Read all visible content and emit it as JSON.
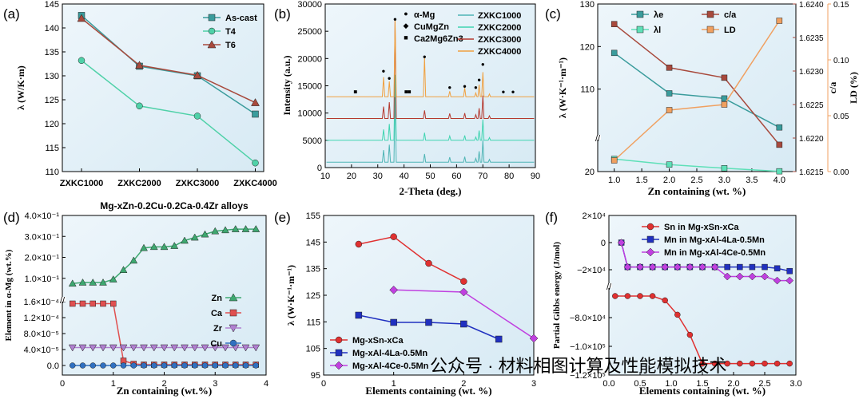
{
  "watermark": "公众号 · 材料相图计算及性能模拟技术",
  "chart_data": [
    {
      "id": "a",
      "panel_label": "(a)",
      "type": "line",
      "ylabel": "λ (W/K·m)",
      "xlabel": "",
      "categories": [
        "ZXKC1000",
        "ZXKC2000",
        "ZXKC3000",
        "ZXKC4000"
      ],
      "ylim": [
        110,
        145
      ],
      "yticks": [
        "110",
        "115",
        "120",
        "125",
        "130",
        "135",
        "140",
        "145"
      ],
      "legend_position": "top-right",
      "series": [
        {
          "name": "As-cast",
          "color": "#3a9c9c",
          "marker": "square",
          "values": [
            142.6,
            132.0,
            130.0,
            122.0
          ]
        },
        {
          "name": "T4",
          "color": "#4fd1a8",
          "marker": "circle",
          "values": [
            133.2,
            123.7,
            121.6,
            111.8
          ]
        },
        {
          "name": "T6",
          "color": "#a8493c",
          "marker": "triangle",
          "values": [
            142.0,
            132.2,
            130.1,
            124.4
          ]
        }
      ]
    },
    {
      "id": "b",
      "panel_label": "(b)",
      "type": "line",
      "xlabel": "2-Theta (deg.)",
      "ylabel": "Intensity (a.u.)",
      "xlim": [
        10,
        90
      ],
      "xticks": [
        "10",
        "20",
        "30",
        "40",
        "50",
        "60",
        "70",
        "80",
        "90"
      ],
      "ylim": [
        0,
        30000
      ],
      "yticks": [
        "0",
        "5000",
        "10000",
        "15000",
        "20000",
        "25000",
        "30000"
      ],
      "phase_legend": [
        {
          "symbol": "●",
          "label": "α-Mg"
        },
        {
          "symbol": "◆",
          "label": "CuMgZn"
        },
        {
          "symbol": "■",
          "label": "Ca2Mg6Zn3"
        }
      ],
      "peaks": [
        32.2,
        34.4,
        36.6,
        47.8,
        57.4,
        63.1,
        67.3,
        68.6,
        70.0,
        72.5
      ],
      "series": [
        {
          "name": "ZXKC1000",
          "color": "#4fb5b5",
          "offset": 1000,
          "heights": [
            2200,
            3200,
            13000,
            1500,
            900,
            1000,
            700,
            2000,
            4000,
            500
          ]
        },
        {
          "name": "ZXKC2000",
          "color": "#3fd4b0",
          "offset": 5000,
          "heights": [
            2000,
            3000,
            12000,
            1400,
            800,
            900,
            600,
            1800,
            3800,
            500
          ]
        },
        {
          "name": "ZXKC3000",
          "color": "#b5392e",
          "offset": 9000,
          "heights": [
            2200,
            3000,
            18000,
            1500,
            900,
            1000,
            700,
            1900,
            4200,
            500
          ]
        },
        {
          "name": "ZXKC4000",
          "color": "#f0a040",
          "offset": 13000,
          "heights": [
            3600,
            2800,
            14300,
            7300,
            1000,
            1600,
            700,
            2200,
            4500,
            500
          ]
        }
      ],
      "markers": [
        {
          "x": 21.5,
          "y": 14000,
          "symbol": "■"
        },
        {
          "x": 32.2,
          "y": 17800,
          "symbol": "●"
        },
        {
          "x": 34.4,
          "y": 16500,
          "symbol": "●"
        },
        {
          "x": 36.6,
          "y": 27300,
          "symbol": "●"
        },
        {
          "x": 40.8,
          "y": 14000,
          "symbol": "■"
        },
        {
          "x": 42.0,
          "y": 14000,
          "symbol": "■"
        },
        {
          "x": 47.8,
          "y": 20400,
          "symbol": "●"
        },
        {
          "x": 57.4,
          "y": 14800,
          "symbol": "●"
        },
        {
          "x": 63.1,
          "y": 15000,
          "symbol": "●"
        },
        {
          "x": 67.3,
          "y": 14800,
          "symbol": "●"
        },
        {
          "x": 68.6,
          "y": 16200,
          "symbol": "●"
        },
        {
          "x": 70.0,
          "y": 19000,
          "symbol": "●"
        },
        {
          "x": 77.8,
          "y": 14000,
          "symbol": "●"
        },
        {
          "x": 81.5,
          "y": 14000,
          "symbol": "●"
        }
      ]
    },
    {
      "id": "c",
      "panel_label": "(c)",
      "type": "line",
      "xlabel": "Zn containing (wt. %)",
      "ylabel": "λ (W·K⁻¹·m⁻¹)",
      "ylabel_right1": "c/a",
      "ylabel_right2": "LD (%)",
      "x": [
        1.0,
        2.0,
        3.0,
        4.0
      ],
      "xlim": [
        0.7,
        4.3
      ],
      "xticks": [
        "1.0",
        "1.5",
        "2.0",
        "2.5",
        "3.0",
        "3.5",
        "4.0"
      ],
      "left_axis": {
        "ticks": [
          "20",
          "110",
          "120",
          "130"
        ],
        "break": true
      },
      "right1_axis": {
        "ylim": [
          1.6215,
          1.624
        ],
        "ticks": [
          "1.6215",
          "1.6220",
          "1.6225",
          "1.6230",
          "1.6235",
          "1.6240"
        ]
      },
      "right2_axis": {
        "ylim": [
          0.0,
          0.15
        ],
        "ticks": [
          "0.00",
          "0.05",
          "0.10",
          "0.15"
        ]
      },
      "legend_position": "top",
      "series": [
        {
          "name": "λe",
          "color": "#3a9c9c",
          "marker": "square",
          "axis": "left",
          "values": [
            118.5,
            109.0,
            107.8,
            101.0
          ]
        },
        {
          "name": "λl",
          "color": "#5ee0b8",
          "marker": "square",
          "axis": "left",
          "values": [
            24.5,
            22.5,
            21.2,
            20.1
          ]
        },
        {
          "name": "c/a",
          "color": "#a8493c",
          "marker": "square",
          "axis": "right1",
          "values": [
            1.6237,
            1.62305,
            1.6229,
            1.6219
          ]
        },
        {
          "name": "LD",
          "color": "#f0a060",
          "marker": "square",
          "axis": "right2",
          "values": [
            0.01,
            0.055,
            0.06,
            0.135
          ]
        }
      ]
    },
    {
      "id": "d",
      "panel_label": "(d)",
      "type": "line",
      "title": "Mg-xZn-0.2Cu-0.2Ca-0.4Zr alloys",
      "xlabel": "Zn containing (wt.%)",
      "ylabel": "Element in α-Mg (wt.%)",
      "xlim": [
        0,
        4
      ],
      "xticks": [
        "0",
        "1",
        "2",
        "3",
        "4"
      ],
      "upper_ticks": [
        "1.0×10⁻¹",
        "2.0×10⁻¹",
        "3.0×10⁻¹",
        "4.0×10⁻¹"
      ],
      "lower_ticks": [
        "0.0",
        "4.0×10⁻⁵",
        "8.0×10⁻⁵",
        "1.2×10⁻⁴",
        "1.6×10⁻⁴"
      ],
      "legend_position": "right",
      "x": [
        0.2,
        0.4,
        0.6,
        0.8,
        1.0,
        1.2,
        1.4,
        1.6,
        1.8,
        2.0,
        2.2,
        2.4,
        2.6,
        2.8,
        3.0,
        3.2,
        3.4,
        3.6,
        3.8
      ],
      "series": [
        {
          "name": "Zn",
          "color": "#3ea870",
          "marker": "triangle",
          "values": [
            0.075,
            0.08,
            0.08,
            0.08,
            0.095,
            0.14,
            0.185,
            0.245,
            0.25,
            0.25,
            0.255,
            0.28,
            0.295,
            0.31,
            0.325,
            0.33,
            0.335,
            0.335,
            0.335
          ]
        },
        {
          "name": "Ca",
          "color": "#e05050",
          "marker": "square",
          "values": [
            0.000155,
            0.000155,
            0.000155,
            0.000155,
            0.000155,
            1.2e-05,
            4e-06,
            2e-06,
            2e-06,
            2e-06,
            2e-06,
            2e-06,
            2e-06,
            2e-06,
            2e-06,
            2e-06,
            2e-06,
            2e-06,
            2e-06
          ]
        },
        {
          "name": "Zr",
          "color": "#b080d0",
          "marker": "triangle-down",
          "values": [
            4.5e-05,
            4.5e-05,
            4.5e-05,
            4.5e-05,
            4.5e-05,
            4.5e-05,
            4.5e-05,
            4.5e-05,
            4.5e-05,
            4.5e-05,
            4.5e-05,
            4.5e-05,
            4.5e-05,
            4.5e-05,
            4.5e-05,
            4.5e-05,
            4.5e-05,
            4.5e-05,
            4.5e-05
          ]
        },
        {
          "name": "Cu",
          "color": "#3070c0",
          "marker": "circle",
          "values": [
            0.0,
            0.0,
            0.0,
            0.0,
            0.0,
            0.0,
            0.0,
            0.0,
            0.0,
            0.0,
            0.0,
            0.0,
            0.0,
            0.0,
            0.0,
            0.0,
            0.0,
            0.0,
            0.0
          ]
        }
      ]
    },
    {
      "id": "e",
      "panel_label": "(e)",
      "type": "line",
      "xlabel": "Elements containing (wt. %)",
      "ylabel": "λ (W·K⁻¹·m⁻¹)",
      "xlim": [
        0,
        3
      ],
      "xticks": [
        "0",
        "1",
        "2",
        "3"
      ],
      "ylim": [
        95,
        155
      ],
      "yticks": [
        "95",
        "105",
        "115",
        "125",
        "135",
        "145",
        "155"
      ],
      "legend_position": "bottom-left",
      "series": [
        {
          "name": "Mg-xSn-xCa",
          "color": "#e03030",
          "marker": "circle",
          "x": [
            0.5,
            1.0,
            1.5,
            2.0
          ],
          "values": [
            144.2,
            147.0,
            137.0,
            130.2
          ]
        },
        {
          "name": "Mg-xAl-4La-0.5Mn",
          "color": "#2030c0",
          "marker": "square",
          "x": [
            0.5,
            1.0,
            1.5,
            2.0,
            2.5
          ],
          "values": [
            117.5,
            114.8,
            114.8,
            114.2,
            108.5
          ]
        },
        {
          "name": "Mg-xAl-4Ce-0.5Mn",
          "color": "#c040e0",
          "marker": "diamond",
          "x": [
            1.0,
            2.0,
            3.0
          ],
          "values": [
            127.0,
            126.2,
            108.8
          ]
        }
      ]
    },
    {
      "id": "f",
      "panel_label": "(f)",
      "type": "line",
      "xlabel": "Elements containing (wt. %)",
      "ylabel": "Partial Gibbs energy (J/mol)",
      "xlim": [
        0,
        3
      ],
      "xticks": [
        "0.0",
        "0.5",
        "1.0",
        "1.5",
        "2.0",
        "2.5",
        "3.0"
      ],
      "upper_ticks": [
        "−2×10⁴",
        "0",
        "2×10⁴"
      ],
      "lower_ticks": [
        "−1.2×10⁵",
        "−1.0×10⁵",
        "−8.0×10⁴"
      ],
      "legend_position": "top-right",
      "series": [
        {
          "name": "Sn in Mg-xSn-xCa",
          "color": "#e03030",
          "marker": "circle",
          "x": [
            0.1,
            0.3,
            0.5,
            0.7,
            0.9,
            1.1,
            1.3,
            1.5,
            1.7,
            1.9,
            2.1,
            2.3,
            2.5,
            2.7,
            2.9
          ],
          "values": [
            -65000,
            -65000,
            -65000,
            -65000,
            -68000,
            -78000,
            -92000,
            -112000,
            -112000,
            -112000,
            -112000,
            -112000,
            -112000,
            -112000,
            -112000
          ]
        },
        {
          "name": "Mn in Mg-xAl-4La-0.5Mn",
          "color": "#2030c0",
          "marker": "square",
          "x": [
            0.2,
            0.3,
            0.5,
            0.7,
            0.9,
            1.1,
            1.3,
            1.5,
            1.7,
            1.9,
            2.1,
            2.3,
            2.5,
            2.7,
            2.9
          ],
          "values": [
            0,
            -18000,
            -18000,
            -18000,
            -18000,
            -18000,
            -18000,
            -18000,
            -18000,
            -18000,
            -18000,
            -18000,
            -18000,
            -19000,
            -21000
          ]
        },
        {
          "name": "Mn in Mg-xAl-4Ce-0.5Mn",
          "color": "#c040e0",
          "marker": "diamond",
          "x": [
            0.2,
            0.3,
            0.5,
            0.7,
            0.9,
            1.1,
            1.3,
            1.5,
            1.7,
            1.9,
            2.1,
            2.3,
            2.5,
            2.7,
            2.9
          ],
          "values": [
            0,
            -18000,
            -18000,
            -18000,
            -18000,
            -18000,
            -18000,
            -18000,
            -18000,
            -25000,
            -25000,
            -25000,
            -25000,
            -28000,
            -28000
          ]
        }
      ]
    }
  ]
}
